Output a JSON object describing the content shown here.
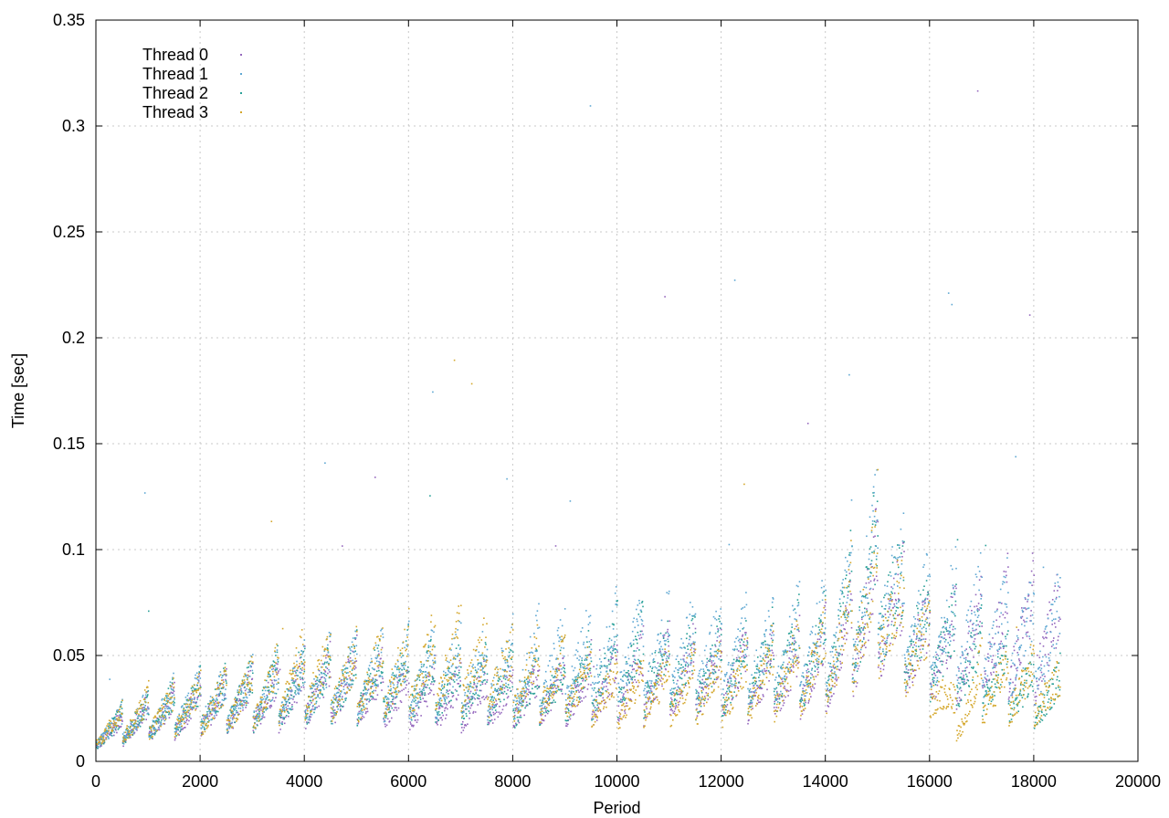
{
  "chart_data": {
    "type": "scatter",
    "title": "",
    "xlabel": "Period",
    "ylabel": "Time [sec]",
    "xlim": [
      0,
      20000
    ],
    "ylim": [
      0,
      0.35
    ],
    "xticks": [
      "0",
      "2000",
      "4000",
      "6000",
      "8000",
      "10000",
      "12000",
      "14000",
      "16000",
      "18000",
      "20000"
    ],
    "yticks": [
      "0",
      "0.05",
      "0.1",
      "0.15",
      "0.2",
      "0.25",
      "0.3",
      "0.35"
    ],
    "grid": true,
    "legend_position": "top-left",
    "series": [
      {
        "name": "Thread 0",
        "color": "#9467bd",
        "x": [
          0,
          1000,
          2000,
          3000,
          4000,
          5000,
          6000,
          7000,
          8000,
          9000,
          10000,
          11000,
          12000,
          13000,
          14000,
          15000,
          15500,
          16000,
          17000,
          18000,
          18500
        ],
        "y": [
          0.012,
          0.02,
          0.025,
          0.028,
          0.033,
          0.035,
          0.03,
          0.03,
          0.03,
          0.033,
          0.035,
          0.04,
          0.04,
          0.038,
          0.045,
          0.075,
          0.06,
          0.05,
          0.055,
          0.06,
          0.055
        ]
      },
      {
        "name": "Thread 1",
        "color": "#5fa8d3",
        "x": [
          0,
          1000,
          2000,
          3000,
          4000,
          5000,
          6000,
          7000,
          8000,
          9000,
          10000,
          11000,
          12000,
          13000,
          14000,
          15000,
          15500,
          16000,
          17000,
          18000,
          18500
        ],
        "y": [
          0.013,
          0.022,
          0.028,
          0.03,
          0.036,
          0.038,
          0.04,
          0.04,
          0.042,
          0.045,
          0.05,
          0.05,
          0.048,
          0.05,
          0.055,
          0.09,
          0.07,
          0.06,
          0.06,
          0.055,
          0.055
        ]
      },
      {
        "name": "Thread 2",
        "color": "#2aa198",
        "x": [
          0,
          1000,
          2000,
          3000,
          4000,
          5000,
          6000,
          7000,
          8000,
          9000,
          10000,
          11000,
          12000,
          13000,
          14000,
          15000,
          15500,
          16000,
          17000,
          18000,
          18500
        ],
        "y": [
          0.013,
          0.021,
          0.027,
          0.03,
          0.035,
          0.037,
          0.038,
          0.035,
          0.033,
          0.035,
          0.045,
          0.045,
          0.042,
          0.045,
          0.05,
          0.085,
          0.065,
          0.055,
          0.045,
          0.03,
          0.03
        ]
      },
      {
        "name": "Thread 3",
        "color": "#d4a72c",
        "x": [
          0,
          1000,
          2000,
          3000,
          4000,
          5000,
          6000,
          7000,
          8000,
          9000,
          10000,
          11000,
          12000,
          13000,
          14000,
          15000,
          15500,
          16000,
          16500,
          17000,
          18000,
          18500
        ],
        "y": [
          0.014,
          0.022,
          0.026,
          0.03,
          0.04,
          0.038,
          0.042,
          0.045,
          0.04,
          0.038,
          0.03,
          0.035,
          0.035,
          0.04,
          0.045,
          0.08,
          0.06,
          0.045,
          0.02,
          0.035,
          0.035,
          0.03
        ]
      }
    ]
  }
}
